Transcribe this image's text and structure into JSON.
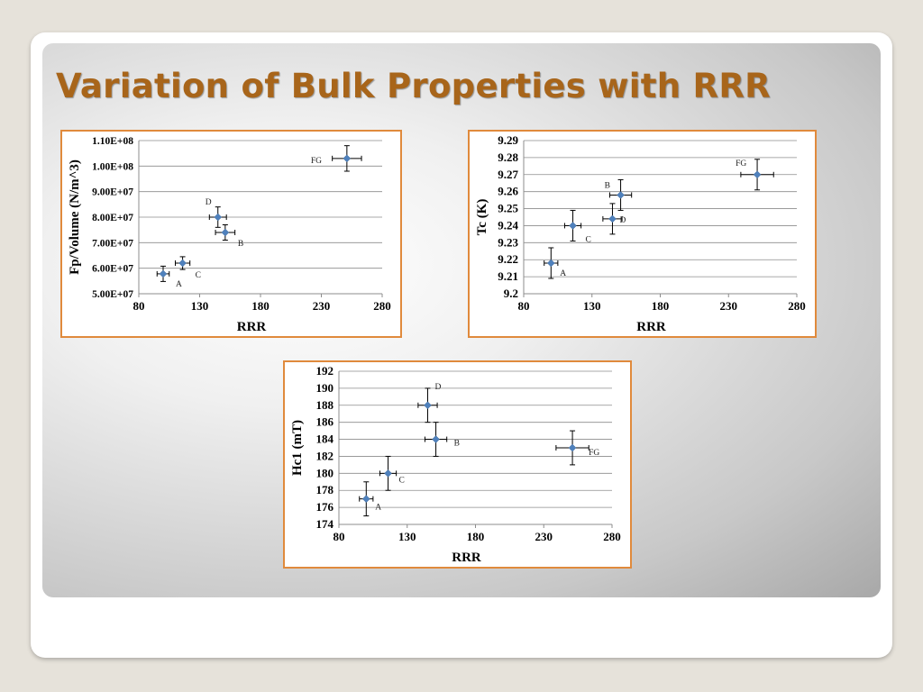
{
  "slide": {
    "title": "Variation of Bulk Properties with RRR"
  },
  "colors": {
    "accent": "#a8651a",
    "border": "#e08a3c",
    "marker": "#4f81bd"
  },
  "chart_data": [
    {
      "type": "scatter",
      "xlabel": "RRR",
      "ylabel": "Fp/Volume (N/m^3)",
      "xlim": [
        80,
        280
      ],
      "ylim": [
        50000000,
        110000000
      ],
      "xticks": [
        "80",
        "130",
        "180",
        "230",
        "280"
      ],
      "yticks": [
        "5.00E+07",
        "6.00E+07",
        "7.00E+07",
        "8.00E+07",
        "9.00E+07",
        "1.00E+08",
        "1.10E+08"
      ],
      "grid": "horizontal",
      "points": [
        {
          "label": "A",
          "x": 100,
          "y": 57800000,
          "xerr": 5,
          "yerr": 3000000
        },
        {
          "label": "C",
          "x": 116,
          "y": 62000000,
          "xerr": 6,
          "yerr": 2500000
        },
        {
          "label": "D",
          "x": 145,
          "y": 80000000,
          "xerr": 7,
          "yerr": 4000000
        },
        {
          "label": "B",
          "x": 151,
          "y": 74000000,
          "xerr": 8,
          "yerr": 3000000
        },
        {
          "label": "FG",
          "x": 251,
          "y": 103000000,
          "xerr": 12,
          "yerr": 5000000
        }
      ]
    },
    {
      "type": "scatter",
      "xlabel": "RRR",
      "ylabel": "Tc (K)",
      "xlim": [
        80,
        280
      ],
      "ylim": [
        9.2,
        9.29
      ],
      "xticks": [
        "80",
        "130",
        "180",
        "230",
        "280"
      ],
      "yticks": [
        "9.2",
        "9.21",
        "9.22",
        "9.23",
        "9.24",
        "9.25",
        "9.26",
        "9.27",
        "9.28",
        "9.29"
      ],
      "grid": "horizontal",
      "points": [
        {
          "label": "A",
          "x": 100,
          "y": 9.218,
          "xerr": 5,
          "yerr": 0.009
        },
        {
          "label": "C",
          "x": 116,
          "y": 9.24,
          "xerr": 6,
          "yerr": 0.009
        },
        {
          "label": "D",
          "x": 145,
          "y": 9.244,
          "xerr": 7,
          "yerr": 0.009
        },
        {
          "label": "B",
          "x": 151,
          "y": 9.258,
          "xerr": 8,
          "yerr": 0.009
        },
        {
          "label": "FG",
          "x": 251,
          "y": 9.27,
          "xerr": 12,
          "yerr": 0.009
        }
      ]
    },
    {
      "type": "scatter",
      "xlabel": "RRR",
      "ylabel": "Hc1 (mT)",
      "xlim": [
        80,
        280
      ],
      "ylim": [
        174,
        192
      ],
      "xticks": [
        "80",
        "130",
        "180",
        "230",
        "280"
      ],
      "yticks": [
        "174",
        "176",
        "178",
        "180",
        "182",
        "184",
        "186",
        "188",
        "190",
        "192"
      ],
      "grid": "horizontal",
      "points": [
        {
          "label": "A",
          "x": 100,
          "y": 177,
          "xerr": 5,
          "yerr": 2
        },
        {
          "label": "C",
          "x": 116,
          "y": 180,
          "xerr": 6,
          "yerr": 2
        },
        {
          "label": "D",
          "x": 145,
          "y": 188,
          "xerr": 7,
          "yerr": 2
        },
        {
          "label": "B",
          "x": 151,
          "y": 184,
          "xerr": 8,
          "yerr": 2
        },
        {
          "label": "FG",
          "x": 251,
          "y": 183,
          "xerr": 12,
          "yerr": 2
        }
      ]
    }
  ]
}
